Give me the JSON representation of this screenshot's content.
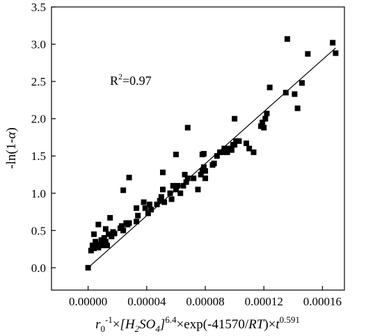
{
  "chart_data": {
    "type": "scatter",
    "title": "",
    "xlim": [
      -2.5e-05,
      0.000175
    ],
    "ylim": [
      -0.3,
      3.5
    ],
    "x_ticks": [
      0.0,
      4e-05,
      8e-05,
      0.00012,
      0.00016
    ],
    "x_tick_labels": [
      "0.00000",
      "0.00004",
      "0.00008",
      "0.00012",
      "0.00016"
    ],
    "y_ticks": [
      0.0,
      0.5,
      1.0,
      1.5,
      2.0,
      2.5,
      3.0,
      3.5
    ],
    "y_tick_labels": [
      "0.0",
      "0.5",
      "1.0",
      "1.5",
      "2.0",
      "2.5",
      "3.0",
      "3.5"
    ],
    "xlabel": {
      "r0": "r",
      "r0_sub": "0",
      "r0_sup": "-1",
      "times1": "×",
      "conc": "[H",
      "conc_sub1": "2",
      "conc_mid": "SO",
      "conc_sub2": "4",
      "conc_end": "]",
      "conc_sup": "6.4",
      "times2": "×",
      "exp_open": "exp(-41570/",
      "rt": "RT",
      "exp_close": ")×",
      "t": "t",
      "t_sup": "0.591"
    },
    "ylabel": {
      "prefix": "-ln(1-",
      "alpha": "α",
      "suffix": ")"
    },
    "annotation": {
      "r": "R",
      "sup": "2",
      "value": "=0.97"
    },
    "grid": false,
    "legend": "none",
    "marker_color": "#000000",
    "series": [
      {
        "x": [
          0.0,
          2e-06,
          3e-06,
          4e-06,
          5e-06,
          6e-06,
          7e-06,
          8e-06,
          9e-06,
          1e-05,
          1.1e-05,
          1.2e-05,
          1.3e-05,
          1.4e-05,
          1.6e-05,
          1.7e-05,
          1.8e-05,
          2.2e-05,
          2.3e-05,
          2.4e-05,
          2.6e-05,
          2.7e-05,
          4e-06,
          7e-06,
          1.2e-05,
          1.5e-05,
          2.3e-05,
          2.8e-05,
          3.3e-05,
          3.3e-05,
          3.4e-05,
          3.8e-05,
          3.9e-05,
          4.1e-05,
          4.2e-05,
          4.3e-05,
          4.7e-05,
          4.9e-05,
          5e-05,
          5.1e-05,
          5.2e-05,
          5.6e-05,
          5.7e-05,
          5.8e-05,
          6e-05,
          6.1e-05,
          6.3e-05,
          6.5e-05,
          6.6e-05,
          6.7e-05,
          6.8e-05,
          7.2e-05,
          7.5e-05,
          7.7e-05,
          7.8e-05,
          7.8e-05,
          7.9e-05,
          8e-05,
          8e-05,
          8.5e-05,
          8.6e-05,
          8.8e-05,
          9e-05,
          9.2e-05,
          9.3e-05,
          9.5e-05,
          9.6e-05,
          9.8e-05,
          9.9e-05,
          0.0001,
          0.000101,
          0.000103,
          0.000108,
          0.00011,
          0.000113,
          0.000118,
          0.000119,
          0.00012,
          0.000121,
          0.000122,
          0.000124,
          0.000135,
          0.000136,
          0.000141,
          0.000143,
          0.000146,
          0.00015,
          0.000167,
          0.000169,
          2.4e-05,
          2.8e-05,
          5.1e-05,
          6e-05,
          6.8e-05,
          7.9e-05,
          0.0001
        ],
        "y": [
          0.0,
          0.23,
          0.3,
          0.26,
          0.35,
          0.31,
          0.27,
          0.3,
          0.37,
          0.3,
          0.4,
          0.35,
          0.3,
          0.45,
          0.42,
          0.48,
          0.46,
          0.53,
          0.56,
          0.5,
          0.6,
          0.58,
          0.45,
          0.58,
          0.52,
          0.67,
          0.55,
          0.6,
          0.62,
          0.8,
          0.7,
          0.88,
          0.8,
          0.73,
          0.85,
          0.78,
          0.85,
          0.9,
          0.95,
          1.05,
          0.88,
          1.0,
          0.92,
          1.1,
          1.05,
          1.1,
          1.0,
          1.1,
          1.25,
          1.15,
          1.2,
          1.2,
          1.05,
          1.25,
          1.52,
          1.3,
          1.35,
          1.3,
          1.2,
          1.38,
          1.4,
          1.5,
          1.55,
          1.55,
          1.6,
          1.55,
          1.6,
          1.58,
          1.65,
          1.65,
          1.7,
          1.7,
          1.67,
          1.6,
          1.55,
          1.9,
          1.95,
          1.88,
          2.0,
          2.07,
          2.42,
          2.35,
          3.07,
          2.33,
          2.14,
          2.48,
          2.87,
          3.02,
          2.88,
          1.04,
          1.21,
          1.28,
          1.52,
          1.88,
          1.53,
          2.0
        ]
      }
    ],
    "fit_line": {
      "x": [
        0.0,
        0.000169
      ],
      "y": [
        0.0,
        2.95
      ]
    }
  }
}
